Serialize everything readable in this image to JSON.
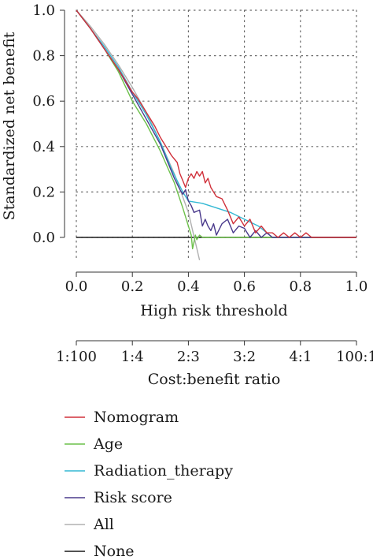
{
  "chart_data": {
    "type": "line",
    "xlabel": "High risk threshold",
    "ylabel": "Standardized net benefit",
    "xlim": [
      0,
      1
    ],
    "ylim": [
      -0.1,
      1.0
    ],
    "x_ticks": [
      "0.0",
      "0.2",
      "0.4",
      "0.6",
      "0.8",
      "1.0"
    ],
    "y_ticks": [
      "0.0",
      "0.2",
      "0.4",
      "0.6",
      "0.8",
      "1.0"
    ],
    "grid": true,
    "secondary_axis": {
      "label": "Cost:benefit ratio",
      "ticks": [
        "1:100",
        "1:4",
        "2:3",
        "3:2",
        "4:1",
        "100:1"
      ]
    },
    "legend_position": "bottom",
    "series": [
      {
        "name": "Nomogram",
        "color": "#d0303a",
        "points": [
          [
            0,
            1.0
          ],
          [
            0.05,
            0.92
          ],
          [
            0.1,
            0.83
          ],
          [
            0.15,
            0.74
          ],
          [
            0.2,
            0.64
          ],
          [
            0.22,
            0.61
          ],
          [
            0.24,
            0.57
          ],
          [
            0.26,
            0.53
          ],
          [
            0.28,
            0.49
          ],
          [
            0.3,
            0.44
          ],
          [
            0.32,
            0.4
          ],
          [
            0.34,
            0.36
          ],
          [
            0.36,
            0.33
          ],
          [
            0.37,
            0.28
          ],
          [
            0.38,
            0.25
          ],
          [
            0.39,
            0.22
          ],
          [
            0.4,
            0.26
          ],
          [
            0.41,
            0.28
          ],
          [
            0.42,
            0.26
          ],
          [
            0.43,
            0.29
          ],
          [
            0.44,
            0.27
          ],
          [
            0.45,
            0.29
          ],
          [
            0.46,
            0.24
          ],
          [
            0.47,
            0.26
          ],
          [
            0.48,
            0.22
          ],
          [
            0.49,
            0.2
          ],
          [
            0.5,
            0.18
          ],
          [
            0.52,
            0.17
          ],
          [
            0.54,
            0.12
          ],
          [
            0.56,
            0.06
          ],
          [
            0.58,
            0.09
          ],
          [
            0.6,
            0.05
          ],
          [
            0.62,
            0.08
          ],
          [
            0.64,
            0.02
          ],
          [
            0.66,
            0.05
          ],
          [
            0.68,
            0.02
          ],
          [
            0.7,
            0.02
          ],
          [
            0.72,
            0.0
          ],
          [
            0.74,
            0.02
          ],
          [
            0.76,
            0.0
          ],
          [
            0.78,
            0.02
          ],
          [
            0.8,
            0.0
          ],
          [
            0.82,
            0.02
          ],
          [
            0.84,
            0.0
          ],
          [
            0.86,
            0.0
          ],
          [
            1.0,
            0.0
          ]
        ]
      },
      {
        "name": "Age",
        "color": "#6cc04a",
        "points": [
          [
            0,
            1.0
          ],
          [
            0.05,
            0.92
          ],
          [
            0.1,
            0.83
          ],
          [
            0.15,
            0.73
          ],
          [
            0.2,
            0.6
          ],
          [
            0.25,
            0.5
          ],
          [
            0.3,
            0.38
          ],
          [
            0.35,
            0.24
          ],
          [
            0.38,
            0.13
          ],
          [
            0.4,
            0.05
          ],
          [
            0.41,
            0.01
          ],
          [
            0.415,
            -0.05
          ],
          [
            0.42,
            -0.02
          ],
          [
            0.425,
            0.01
          ],
          [
            0.43,
            -0.01
          ],
          [
            0.44,
            0.01
          ],
          [
            0.45,
            0.0
          ],
          [
            1.0,
            0.0
          ]
        ]
      },
      {
        "name": "Radiation_therapy",
        "color": "#33b8d4",
        "points": [
          [
            0,
            1.0
          ],
          [
            0.05,
            0.92
          ],
          [
            0.1,
            0.84
          ],
          [
            0.15,
            0.75
          ],
          [
            0.2,
            0.64
          ],
          [
            0.25,
            0.54
          ],
          [
            0.3,
            0.42
          ],
          [
            0.34,
            0.3
          ],
          [
            0.38,
            0.2
          ],
          [
            0.4,
            0.16
          ],
          [
            0.45,
            0.15
          ],
          [
            0.5,
            0.13
          ],
          [
            0.55,
            0.11
          ],
          [
            0.6,
            0.08
          ],
          [
            0.65,
            0.05
          ],
          [
            0.68,
            0.02
          ],
          [
            0.7,
            0.0
          ],
          [
            1.0,
            0.0
          ]
        ]
      },
      {
        "name": "Risk score",
        "color": "#4a3a8c",
        "points": [
          [
            0,
            1.0
          ],
          [
            0.05,
            0.92
          ],
          [
            0.1,
            0.83
          ],
          [
            0.15,
            0.74
          ],
          [
            0.2,
            0.63
          ],
          [
            0.25,
            0.52
          ],
          [
            0.3,
            0.41
          ],
          [
            0.33,
            0.32
          ],
          [
            0.35,
            0.26
          ],
          [
            0.37,
            0.21
          ],
          [
            0.38,
            0.19
          ],
          [
            0.39,
            0.21
          ],
          [
            0.4,
            0.16
          ],
          [
            0.41,
            0.14
          ],
          [
            0.42,
            0.11
          ],
          [
            0.44,
            0.12
          ],
          [
            0.45,
            0.05
          ],
          [
            0.46,
            0.08
          ],
          [
            0.47,
            0.05
          ],
          [
            0.48,
            0.03
          ],
          [
            0.49,
            0.06
          ],
          [
            0.5,
            0.01
          ],
          [
            0.52,
            0.06
          ],
          [
            0.54,
            0.08
          ],
          [
            0.56,
            0.02
          ],
          [
            0.58,
            0.05
          ],
          [
            0.6,
            0.04
          ],
          [
            0.62,
            0.0
          ],
          [
            0.64,
            0.03
          ],
          [
            0.66,
            0.0
          ],
          [
            0.68,
            0.02
          ],
          [
            0.7,
            0.0
          ],
          [
            1.0,
            0.0
          ]
        ]
      },
      {
        "name": "All",
        "color": "#b0b0b0",
        "points": [
          [
            0,
            1.0
          ],
          [
            0.05,
            0.93
          ],
          [
            0.1,
            0.85
          ],
          [
            0.15,
            0.76
          ],
          [
            0.2,
            0.66
          ],
          [
            0.25,
            0.55
          ],
          [
            0.3,
            0.42
          ],
          [
            0.35,
            0.28
          ],
          [
            0.4,
            0.11
          ],
          [
            0.44,
            -0.1
          ]
        ]
      },
      {
        "name": "None",
        "color": "#1a1a1a",
        "points": [
          [
            0,
            0.0
          ],
          [
            1.0,
            0.0
          ]
        ]
      }
    ]
  }
}
